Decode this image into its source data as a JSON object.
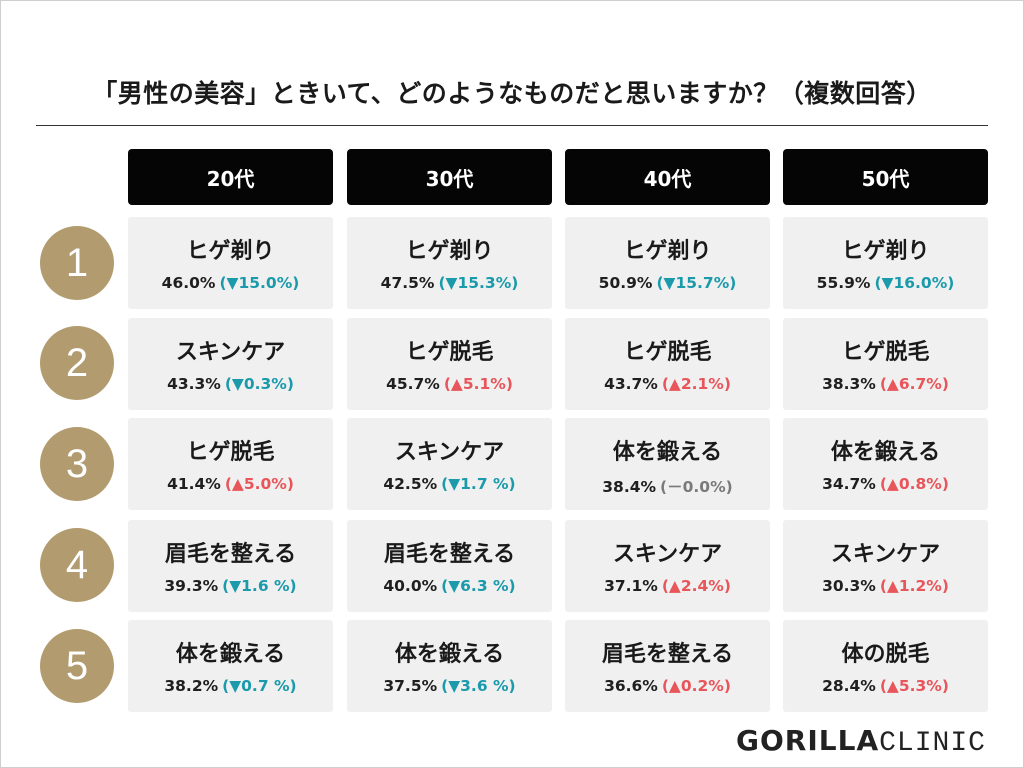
{
  "title": "「男性の美容」ときいて、どのようなものだと思いますか？（複数回答）",
  "columns": [
    "20代",
    "30代",
    "40代",
    "50代"
  ],
  "ranks": [
    "1",
    "2",
    "3",
    "4",
    "5"
  ],
  "rows": [
    [
      {
        "label": "ヒゲ剃り",
        "pct": "46.0%",
        "change": "(▼15.0%)",
        "trend": "down"
      },
      {
        "label": "ヒゲ剃り",
        "pct": "47.5%",
        "change": "(▼15.3%)",
        "trend": "down"
      },
      {
        "label": "ヒゲ剃り",
        "pct": "50.9%",
        "change": "(▼15.7%)",
        "trend": "down"
      },
      {
        "label": "ヒゲ剃り",
        "pct": "55.9%",
        "change": "(▼16.0%)",
        "trend": "down"
      }
    ],
    [
      {
        "label": "スキンケア",
        "pct": "43.3%",
        "change": "(▼0.3%)",
        "trend": "down"
      },
      {
        "label": "ヒゲ脱毛",
        "pct": "45.7%",
        "change": "(▲5.1%)",
        "trend": "up"
      },
      {
        "label": "ヒゲ脱毛",
        "pct": "43.7%",
        "change": "(▲2.1%)",
        "trend": "up"
      },
      {
        "label": "ヒゲ脱毛",
        "pct": "38.3%",
        "change": "(▲6.7%)",
        "trend": "up"
      }
    ],
    [
      {
        "label": "ヒゲ脱毛",
        "pct": "41.4%",
        "change": "(▲5.0%)",
        "trend": "up"
      },
      {
        "label": "スキンケア",
        "pct": "42.5%",
        "change": "(▼1.7 %)",
        "trend": "down"
      },
      {
        "label": "体を鍛える",
        "pct": "38.4%",
        "change": "(－0.0%)",
        "trend": "flat"
      },
      {
        "label": "体を鍛える",
        "pct": "34.7%",
        "change": "(▲0.8%)",
        "trend": "up"
      }
    ],
    [
      {
        "label": "眉毛を整える",
        "pct": "39.3%",
        "change": "(▼1.6 %)",
        "trend": "down"
      },
      {
        "label": "眉毛を整える",
        "pct": "40.0%",
        "change": "(▼6.3 %)",
        "trend": "down"
      },
      {
        "label": "スキンケア",
        "pct": "37.1%",
        "change": "(▲2.4%)",
        "trend": "up"
      },
      {
        "label": "スキンケア",
        "pct": "30.3%",
        "change": "(▲1.2%)",
        "trend": "up"
      }
    ],
    [
      {
        "label": "体を鍛える",
        "pct": "38.2%",
        "change": "(▼0.7 %)",
        "trend": "down"
      },
      {
        "label": "体を鍛える",
        "pct": "37.5%",
        "change": "(▼3.6 %)",
        "trend": "down"
      },
      {
        "label": "眉毛を整える",
        "pct": "36.6%",
        "change": "(▲0.2%)",
        "trend": "up"
      },
      {
        "label": "体の脱毛",
        "pct": "28.4%",
        "change": "(▲5.3%)",
        "trend": "up"
      }
    ]
  ],
  "logo": {
    "bold": "GORILLA",
    "light": "CLINIC"
  },
  "colors": {
    "header_bg": "#050505",
    "badge_gold": "#b29c6f",
    "cell_bg": "#f0f0f0",
    "down": "#1a9aab",
    "up": "#e8555a",
    "flat": "#7a7a7a"
  }
}
